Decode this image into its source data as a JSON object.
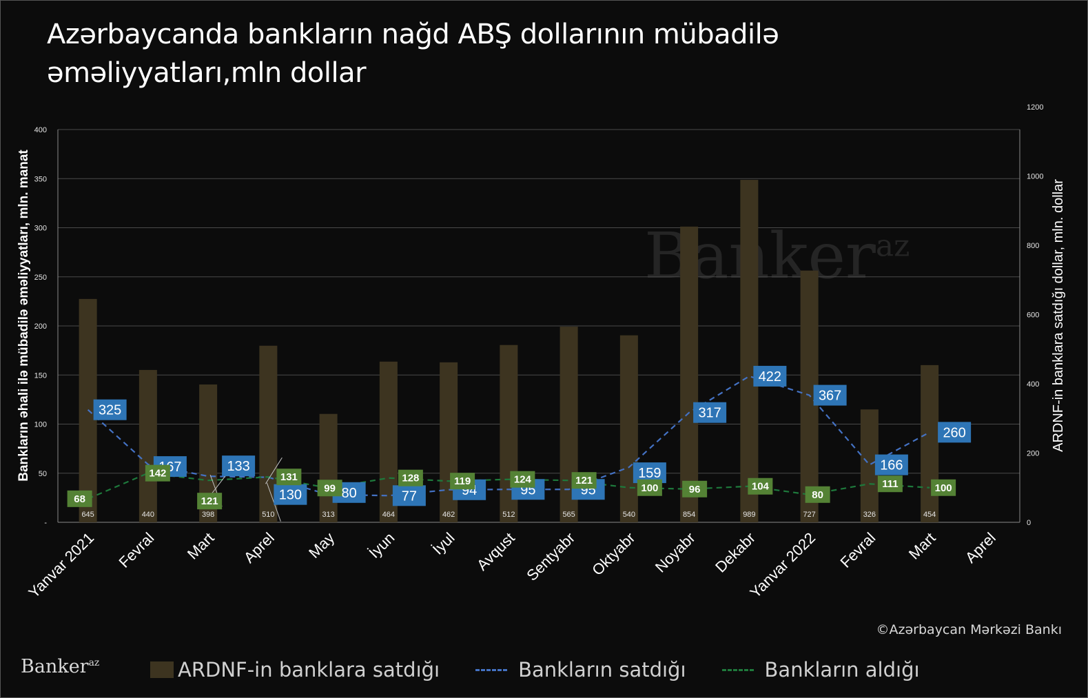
{
  "title": "Azərbaycanda bankların nağd ABŞ dollarının mübadilə əməliyyatları,mln dollar",
  "watermark": "Banker",
  "watermark_sup": "az",
  "source": "©Azərbaycan Mərkəzi Bankı",
  "brand": "Banker",
  "brand_sup": "az",
  "legend": {
    "bars": "ARDNF-in  banklara satdığı",
    "sold": "Bankların satdığı",
    "bought": "Bankların aldığı"
  },
  "colors": {
    "bar": "#3d3420",
    "sold": "#4472c4",
    "bought": "#1e7a3c",
    "sold_label_bg": "#2e75b6",
    "bought_label_bg": "#548235",
    "gridline": "#4a4a4a"
  },
  "chart_data": {
    "type": "bar",
    "categories": [
      "Yanvar 2021",
      "Fevral",
      "Mart",
      "Aprel",
      "May",
      "İyun",
      "İyul",
      "Avqust",
      "Sentyabr",
      "Oktyabr",
      "Noyabr",
      "Dekabr",
      "Yanvar 2022",
      "Fevral",
      "Mart",
      "Aprel"
    ],
    "left_axis": {
      "title": "Bankların əhali ilə mübadilə əməliyyatları, mln. manat",
      "ylim": [
        0,
        400
      ],
      "ticks": [
        "-",
        "50",
        "100",
        "150",
        "200",
        "250",
        "300",
        "350",
        "400"
      ]
    },
    "right_axis": {
      "title": "ARDNF-in banklara satdığı dollar, mln. dollar",
      "ylim": [
        0,
        1200
      ],
      "ticks": [
        "0",
        "200",
        "400",
        "600",
        "800",
        "1000",
        "1200"
      ]
    },
    "grid": true,
    "series": [
      {
        "name": "ARDNF-in  banklara satdığı",
        "type": "bar",
        "axis": "right",
        "values": [
          645,
          440,
          398,
          510,
          313,
          464,
          462,
          512,
          565,
          540,
          854,
          989,
          727,
          326,
          454,
          null
        ]
      },
      {
        "name": "Bankların satdığı",
        "type": "line",
        "style": "dashed",
        "axis": "right",
        "values": [
          325,
          167,
          133,
          130,
          80,
          77,
          94,
          95,
          95,
          159,
          317,
          422,
          367,
          166,
          260,
          null
        ]
      },
      {
        "name": "Bankların aldığı",
        "type": "line",
        "style": "dashed",
        "axis": "right",
        "values": [
          68,
          142,
          121,
          131,
          99,
          128,
          119,
          124,
          121,
          100,
          96,
          104,
          80,
          111,
          100,
          null
        ]
      }
    ]
  }
}
